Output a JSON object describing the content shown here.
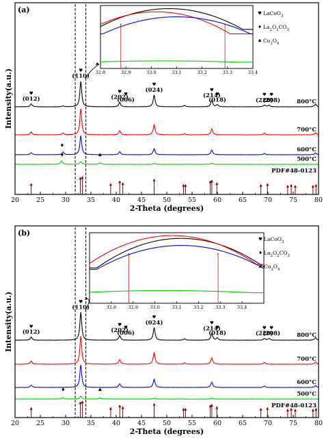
{
  "chart_data": [
    {
      "type": "line",
      "panel_label": "(a)",
      "xlabel": "2-Theta (degrees)",
      "ylabel": "Intensity(a.u.)",
      "xlim": [
        20,
        80
      ],
      "x_ticks": [
        "20",
        "25",
        "30",
        "35",
        "40",
        "45",
        "50",
        "55",
        "60",
        "65",
        "70",
        "75",
        "80"
      ],
      "series": [
        {
          "name": "800°C",
          "color": "#000000",
          "peaks": [
            [
              23.2,
              0.07
            ],
            [
              29.5,
              0.02
            ],
            [
              33.0,
              0.6
            ],
            [
              40.7,
              0.1
            ],
            [
              47.5,
              0.28
            ],
            [
              53.5,
              0.03
            ],
            [
              58.9,
              0.15
            ],
            [
              60.0,
              0.05
            ],
            [
              69.3,
              0.04
            ],
            [
              70.2,
              0.04
            ],
            [
              79.4,
              0.06
            ]
          ]
        },
        {
          "name": "700°C",
          "color": "#ff0000",
          "peaks": [
            [
              23.2,
              0.07
            ],
            [
              29.5,
              0.04
            ],
            [
              33.0,
              0.62
            ],
            [
              40.7,
              0.1
            ],
            [
              47.5,
              0.24
            ],
            [
              53.5,
              0.03
            ],
            [
              58.9,
              0.14
            ],
            [
              69.3,
              0.04
            ],
            [
              79.4,
              0.05
            ]
          ]
        },
        {
          "name": "600°C",
          "color": "#0000ff",
          "peaks": [
            [
              23.2,
              0.05
            ],
            [
              29.5,
              0.06
            ],
            [
              33.0,
              0.45
            ],
            [
              40.7,
              0.07
            ],
            [
              47.5,
              0.14
            ],
            [
              58.9,
              0.11
            ],
            [
              69.3,
              0.03
            ],
            [
              79.4,
              0.04
            ]
          ]
        },
        {
          "name": "500°C",
          "color": "#00cc00",
          "peaks": [
            [
              29.2,
              0.08
            ],
            [
              33.0,
              0.06
            ],
            [
              36.8,
              0.03
            ],
            [
              47.5,
              0.02
            ],
            [
              58.9,
              0.02
            ]
          ]
        }
      ],
      "reference": {
        "name": "PDF#48-0123",
        "color": "#8b0000",
        "positions": [
          23.2,
          32.9,
          33.3,
          38.9,
          40.7,
          41.3,
          47.5,
          53.3,
          53.7,
          58.6,
          58.9,
          59.9,
          68.6,
          69.9,
          73.9,
          74.6,
          75.4,
          78.9,
          79.5
        ],
        "heights": [
          0.6,
          0.95,
          1.0,
          0.6,
          0.75,
          0.65,
          0.85,
          0.55,
          0.55,
          0.75,
          0.8,
          0.65,
          0.55,
          0.6,
          0.5,
          0.55,
          0.5,
          0.5,
          0.55
        ]
      },
      "miller_labels": [
        {
          "text": "(012)",
          "x": 23.2,
          "level": 0.08
        },
        {
          "text": "(110)",
          "x": 33.0,
          "level": 0.62
        },
        {
          "text": "(202)",
          "x": 40.7,
          "level": 0.12
        },
        {
          "text": "(006)",
          "x": 41.9,
          "level": 0.06
        },
        {
          "text": "(024)",
          "x": 47.5,
          "level": 0.29
        },
        {
          "text": "(214)",
          "x": 58.9,
          "level": 0.16
        },
        {
          "text": "(018)",
          "x": 60.0,
          "level": 0.06
        },
        {
          "text": "(220)",
          "x": 69.3,
          "level": 0.05
        },
        {
          "text": "(208)",
          "x": 70.7,
          "level": 0.05
        }
      ],
      "phase_markers": [
        {
          "symbol": "triangle",
          "x": 36.8,
          "series": 3
        },
        {
          "symbol": "diamond",
          "x": 29.3,
          "series": 2
        },
        {
          "symbol": "diamond",
          "x": 29.3,
          "series": 3
        }
      ],
      "dash_lines": [
        31.9,
        34.0
      ],
      "legend": {
        "lacoo3": [
          "LaCoO",
          "3",
          ""
        ],
        "la2o2co3": [
          "La",
          "2",
          "O",
          "2",
          "CO",
          "3"
        ],
        "co3o4": [
          "Co",
          "3",
          "O",
          "4"
        ]
      },
      "inset": {
        "xlim": [
          32.8,
          33.4
        ],
        "x_ticks": [
          "32.8",
          "32.9",
          "33.0",
          "33.1",
          "33.2",
          "33.3",
          "33.4"
        ],
        "curves": [
          {
            "color": "#000000",
            "center": 33.07,
            "top": 0.95,
            "edge": 0.62
          },
          {
            "color": "#ff0000",
            "center": 33.02,
            "top": 0.9,
            "edge": 0.55
          },
          {
            "color": "#0000ff",
            "center": 33.1,
            "top": 0.82,
            "edge": 0.55
          },
          {
            "color": "#00cc00",
            "center": 33.05,
            "top": 0.12,
            "edge": 0.1
          }
        ],
        "ref_lines": [
          32.88,
          33.29
        ]
      }
    },
    {
      "type": "line",
      "panel_label": "(b)",
      "xlabel": "2-Theta (degrees)",
      "ylabel": "Intensity(a.u.)",
      "xlim": [
        20,
        80
      ],
      "x_ticks": [
        "20",
        "25",
        "30",
        "35",
        "40",
        "45",
        "50",
        "55",
        "60",
        "65",
        "70",
        "75",
        "80"
      ],
      "series": [
        {
          "name": "800°C",
          "color": "#000000",
          "peaks": [
            [
              23.2,
              0.07
            ],
            [
              33.0,
              0.62
            ],
            [
              40.7,
              0.1
            ],
            [
              47.5,
              0.28
            ],
            [
              53.5,
              0.03
            ],
            [
              58.9,
              0.15
            ],
            [
              60.0,
              0.05
            ],
            [
              69.3,
              0.04
            ],
            [
              70.2,
              0.04
            ],
            [
              79.4,
              0.06
            ]
          ]
        },
        {
          "name": "700°C",
          "color": "#ff0000",
          "peaks": [
            [
              23.2,
              0.07
            ],
            [
              33.0,
              0.62
            ],
            [
              40.7,
              0.1
            ],
            [
              47.5,
              0.26
            ],
            [
              53.5,
              0.03
            ],
            [
              58.9,
              0.14
            ],
            [
              69.3,
              0.04
            ],
            [
              79.4,
              0.05
            ]
          ]
        },
        {
          "name": "600°C",
          "color": "#0000ff",
          "peaks": [
            [
              23.2,
              0.05
            ],
            [
              33.0,
              0.5
            ],
            [
              40.7,
              0.08
            ],
            [
              47.5,
              0.18
            ],
            [
              58.9,
              0.12
            ],
            [
              69.3,
              0.03
            ],
            [
              79.4,
              0.04
            ]
          ]
        },
        {
          "name": "500°C",
          "color": "#00cc00",
          "peaks": [
            [
              29.5,
              0.03
            ],
            [
              33.0,
              0.06
            ],
            [
              36.8,
              0.03
            ],
            [
              47.5,
              0.02
            ],
            [
              58.9,
              0.02
            ]
          ]
        }
      ],
      "reference": {
        "name": "PDF#48-0123",
        "color": "#8b0000",
        "positions": [
          23.2,
          32.9,
          33.3,
          38.9,
          40.7,
          41.3,
          47.5,
          53.3,
          53.7,
          58.6,
          58.9,
          59.9,
          68.6,
          69.9,
          73.9,
          74.6,
          75.4,
          78.9,
          79.5
        ],
        "heights": [
          0.6,
          0.95,
          1.0,
          0.6,
          0.75,
          0.65,
          0.85,
          0.55,
          0.55,
          0.75,
          0.8,
          0.65,
          0.55,
          0.6,
          0.5,
          0.55,
          0.5,
          0.5,
          0.55
        ]
      },
      "miller_labels": [
        {
          "text": "(012)",
          "x": 23.2,
          "level": 0.08
        },
        {
          "text": "(110)",
          "x": 33.0,
          "level": 0.63
        },
        {
          "text": "(202)",
          "x": 40.7,
          "level": 0.12
        },
        {
          "text": "(006)",
          "x": 41.9,
          "level": 0.06
        },
        {
          "text": "(024)",
          "x": 47.5,
          "level": 0.29
        },
        {
          "text": "(214)",
          "x": 58.9,
          "level": 0.16
        },
        {
          "text": "(018)",
          "x": 60.0,
          "level": 0.06
        },
        {
          "text": "(220)",
          "x": 69.3,
          "level": 0.05
        },
        {
          "text": "(208)",
          "x": 70.7,
          "level": 0.05
        }
      ],
      "phase_markers": [
        {
          "symbol": "diamond",
          "x": 29.5,
          "series": 3
        },
        {
          "symbol": "triangle",
          "x": 36.8,
          "series": 3
        }
      ],
      "dash_lines": [
        31.9,
        34.0
      ],
      "legend": {
        "lacoo3": [
          "LaCoO",
          "3",
          ""
        ],
        "la2o2co3": [
          "La",
          "2",
          "O",
          "2",
          "CO",
          "3"
        ],
        "co3o4": [
          "Co",
          "3",
          "O",
          "4"
        ]
      },
      "inset": {
        "xlim": [
          32.7,
          33.5
        ],
        "x_ticks": [
          "32.8",
          "32.9",
          "33.0",
          "33.1",
          "33.2",
          "33.3",
          "33.4"
        ],
        "curves": [
          {
            "color": "#000000",
            "center": 33.12,
            "top": 0.92,
            "edge": 0.5
          },
          {
            "color": "#ff0000",
            "center": 33.08,
            "top": 0.96,
            "edge": 0.55
          },
          {
            "color": "#0000ff",
            "center": 33.12,
            "top": 0.82,
            "edge": 0.48
          },
          {
            "color": "#00cc00",
            "center": 33.05,
            "top": 0.18,
            "edge": 0.15
          }
        ],
        "ref_lines": [
          32.88,
          33.29
        ]
      }
    }
  ]
}
